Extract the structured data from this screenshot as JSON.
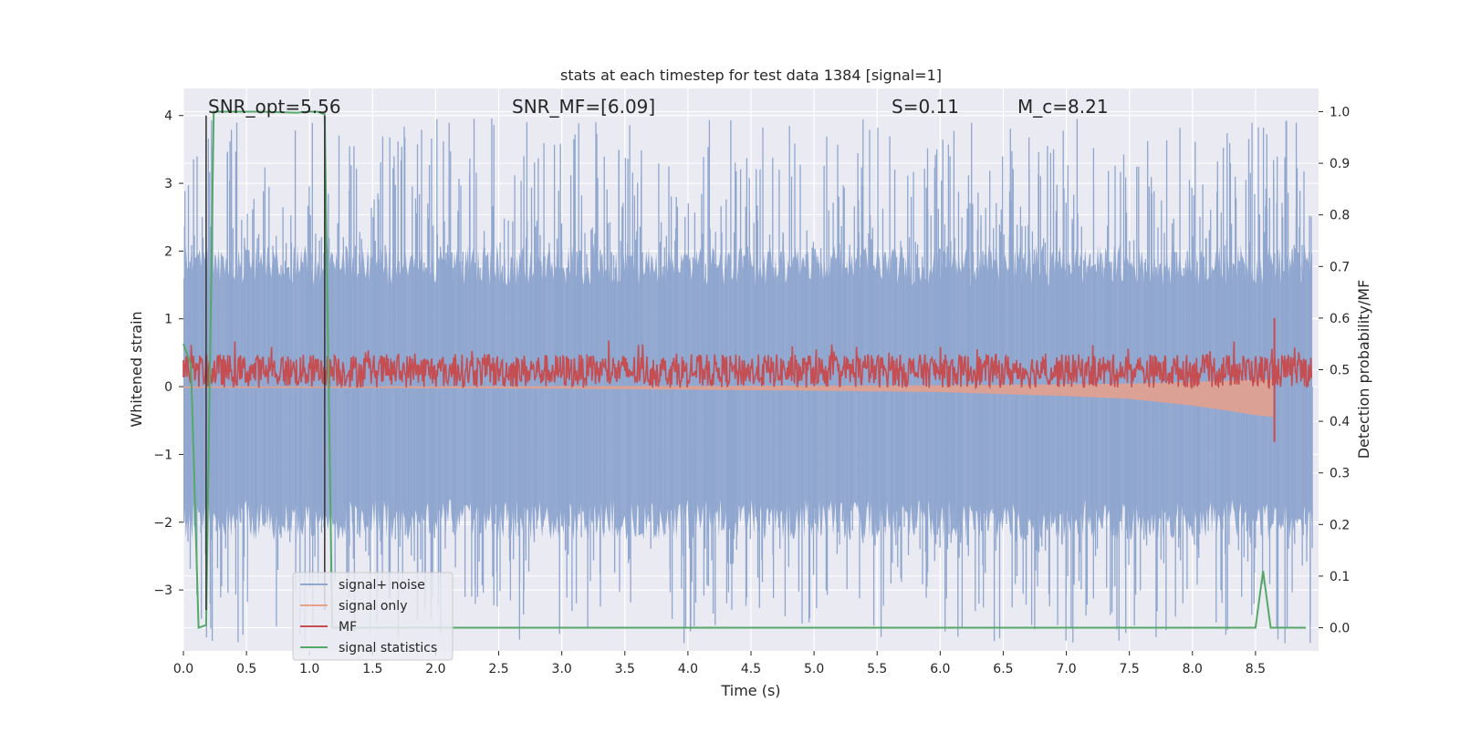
{
  "chart_data": {
    "type": "line",
    "title": "stats at each timestep for test data 1384 [signal=1]",
    "xlabel": "Time (s)",
    "ylabel": "Whitened strain",
    "y2label": "Detection probability/MF",
    "xlim": [
      0,
      9
    ],
    "ylim": [
      -3.9,
      4.4
    ],
    "y2lim": [
      -0.045,
      1.045
    ],
    "x_ticks": [
      "0.0",
      "0.5",
      "1.0",
      "1.5",
      "2.0",
      "2.5",
      "3.0",
      "3.5",
      "4.0",
      "4.5",
      "5.0",
      "5.5",
      "6.0",
      "6.5",
      "7.0",
      "7.5",
      "8.0",
      "8.5"
    ],
    "y_ticks": [
      "−3",
      "−2",
      "−1",
      "0",
      "1",
      "2",
      "3",
      "4"
    ],
    "y2_ticks": [
      "0.0",
      "0.1",
      "0.2",
      "0.3",
      "0.4",
      "0.5",
      "0.6",
      "0.7",
      "0.8",
      "0.9",
      "1.0"
    ],
    "grid": true,
    "legend_position": "lower-left",
    "annotations": [
      {
        "name": "snr-opt",
        "text": "SNR_opt=5.56",
        "x": 0.19
      },
      {
        "name": "snr-mf",
        "text": "SNR_MF=[6.09]",
        "x": 2.6
      },
      {
        "name": "spin",
        "text": "S=0.11",
        "x": 5.62
      },
      {
        "name": "chirp-mass",
        "text": "M_c=8.21",
        "x": 6.62
      }
    ],
    "vertical_markers": [
      0.18,
      1.12
    ],
    "series": [
      {
        "name": "signal+ noise",
        "axis": "left",
        "color": "#8fa6cf",
        "kind": "noise",
        "envelope": {
          "center": 0.0,
          "core_amplitude": 1.75,
          "spike_max": 4.0,
          "spike_min": -3.8
        }
      },
      {
        "name": "signal only",
        "axis": "left",
        "color": "#e8a08a",
        "kind": "chirp",
        "points": [
          [
            0.0,
            0.02
          ],
          [
            1.0,
            0.02
          ],
          [
            3.0,
            0.03
          ],
          [
            5.0,
            0.06
          ],
          [
            6.0,
            0.08
          ],
          [
            7.0,
            0.14
          ],
          [
            7.5,
            0.18
          ],
          [
            8.0,
            0.28
          ],
          [
            8.3,
            0.36
          ],
          [
            8.5,
            0.42
          ],
          [
            8.65,
            0.45
          ],
          [
            8.66,
            0.0
          ]
        ]
      },
      {
        "name": "MF",
        "axis": "right",
        "color": "#c44e52",
        "kind": "band",
        "band": {
          "low": 0.465,
          "high": 0.53,
          "peak_max": 0.56,
          "spike_x": 8.65,
          "spike_high": 0.6,
          "spike_low": 0.36
        }
      },
      {
        "name": "signal statistics",
        "axis": "right",
        "color": "#55a868",
        "kind": "line",
        "x": [
          0.0,
          0.06,
          0.12,
          0.18,
          0.24,
          0.3,
          0.6,
          0.9,
          1.0,
          1.06,
          1.12,
          1.18,
          1.5,
          2.0,
          3.0,
          4.0,
          5.0,
          6.0,
          7.0,
          8.0,
          8.5,
          8.56,
          8.62,
          8.68,
          8.9
        ],
        "y": [
          0.55,
          0.51,
          0.0,
          0.005,
          1.0,
          1.0,
          1.0,
          0.998,
          1.0,
          1.0,
          0.995,
          0.0,
          0.0,
          0.0,
          0.0,
          0.0,
          0.0,
          0.0,
          0.0,
          0.0,
          0.0,
          0.11,
          0.0,
          0.0,
          0.0
        ]
      }
    ]
  }
}
